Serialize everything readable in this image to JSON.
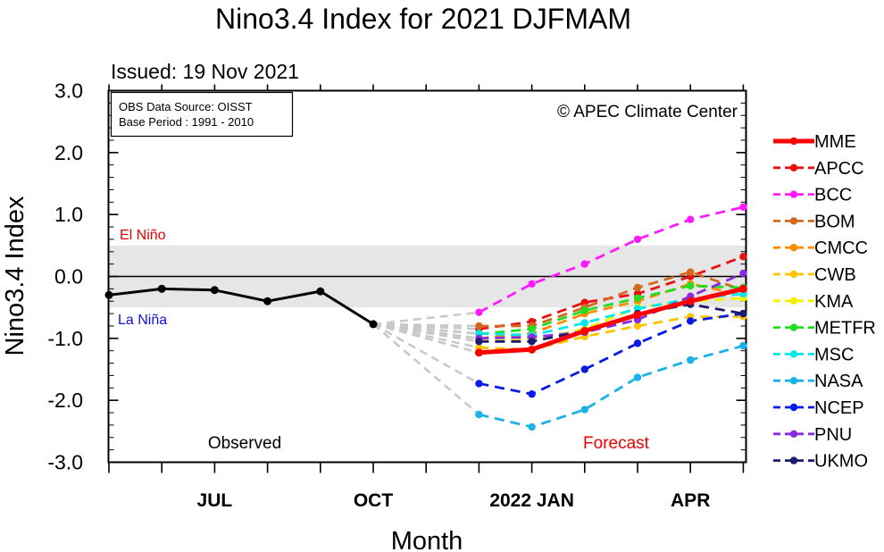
{
  "chart_data": {
    "type": "line",
    "title": "Nino3.4 Index for 2021 DJFMAM",
    "subtitle": "Issued: 19 Nov 2021",
    "xlabel": "Month",
    "ylabel": "Nino3.4 Index",
    "ylim": [
      -3.0,
      3.0
    ],
    "yticks": [
      "3.0",
      "2.0",
      "1.0",
      "0.0",
      "-1.0",
      "-2.0",
      "-3.0"
    ],
    "ytick_values": [
      3,
      2,
      1,
      0,
      -1,
      -2,
      -3
    ],
    "x_months": [
      "May 2021",
      "Jun 2021",
      "Jul 2021",
      "Aug 2021",
      "Sep 2021",
      "Oct 2021",
      "Nov 2021",
      "Dec 2021",
      "Jan 2022",
      "Feb 2022",
      "Mar 2022",
      "Apr 2022",
      "May 2022"
    ],
    "xtick_labels": [
      {
        "month_index": 2,
        "label": "JUL"
      },
      {
        "month_index": 5,
        "label": "OCT"
      },
      {
        "month_index": 8,
        "label": "2022 JAN"
      },
      {
        "month_index": 11,
        "label": "APR"
      }
    ],
    "info_box": [
      "OBS Data Source: OISST",
      "Base Period : 1991 - 2010"
    ],
    "copyright": "© APEC Climate Center",
    "el_nino_label": "El Niño",
    "la_nina_label": "La Niña",
    "neutral_band": [
      -0.5,
      0.5
    ],
    "observed_label": "Observed",
    "forecast_label": "Forecast",
    "observed": {
      "months": [
        "May 2021",
        "Jun 2021",
        "Jul 2021",
        "Aug 2021",
        "Sep 2021",
        "Oct 2021"
      ],
      "values": [
        -0.3,
        -0.2,
        -0.22,
        -0.4,
        -0.24,
        -0.77
      ]
    },
    "forecast_months": [
      "Dec 2021",
      "Jan 2022",
      "Feb 2022",
      "Mar 2022",
      "Apr 2022",
      "May 2022"
    ],
    "series": [
      {
        "name": "MME",
        "color": "#ff0000",
        "values": [
          -1.23,
          -1.18,
          -0.88,
          -0.62,
          -0.4,
          -0.2
        ]
      },
      {
        "name": "APCC",
        "color": "#e81010",
        "values": [
          -0.85,
          -0.73,
          -0.42,
          -0.28,
          0.0,
          0.32
        ]
      },
      {
        "name": "BCC",
        "color": "#ff1aff",
        "values": [
          -0.58,
          -0.12,
          0.2,
          0.6,
          0.92,
          1.12
        ]
      },
      {
        "name": "BOM",
        "color": "#d2691e",
        "values": [
          -0.8,
          -0.8,
          -0.5,
          -0.18,
          0.07,
          -0.22
        ]
      },
      {
        "name": "CMCC",
        "color": "#ff8c00",
        "values": [
          -1.0,
          -0.92,
          -0.6,
          -0.4,
          -0.12,
          -0.3
        ]
      },
      {
        "name": "CWB",
        "color": "#ffc400",
        "values": [
          -1.15,
          -1.18,
          -0.97,
          -0.8,
          -0.65,
          -0.65
        ]
      },
      {
        "name": "KMA",
        "color": "#f2f200",
        "values": [
          -1.05,
          -1.02,
          -0.85,
          -0.5,
          -0.4,
          -0.35
        ]
      },
      {
        "name": "METFR",
        "color": "#22dd22",
        "values": [
          -0.93,
          -0.85,
          -0.55,
          -0.35,
          -0.15,
          -0.18
        ]
      },
      {
        "name": "MSC",
        "color": "#00e8e8",
        "values": [
          -0.92,
          -0.95,
          -0.75,
          -0.52,
          -0.36,
          -0.28
        ]
      },
      {
        "name": "NASA",
        "color": "#1ab2e8",
        "values": [
          -2.23,
          -2.43,
          -2.15,
          -1.63,
          -1.35,
          -1.12
        ]
      },
      {
        "name": "NCEP",
        "color": "#0a1ae6",
        "values": [
          -1.73,
          -1.9,
          -1.5,
          -1.08,
          -0.72,
          -0.6
        ]
      },
      {
        "name": "PNU",
        "color": "#8a2be2",
        "values": [
          -1.0,
          -0.98,
          -0.9,
          -0.7,
          -0.32,
          0.05
        ]
      },
      {
        "name": "UKMO",
        "color": "#1a1a6e",
        "values": [
          -1.05,
          -1.05,
          -0.88,
          -0.6,
          -0.45,
          -0.6
        ]
      }
    ]
  }
}
